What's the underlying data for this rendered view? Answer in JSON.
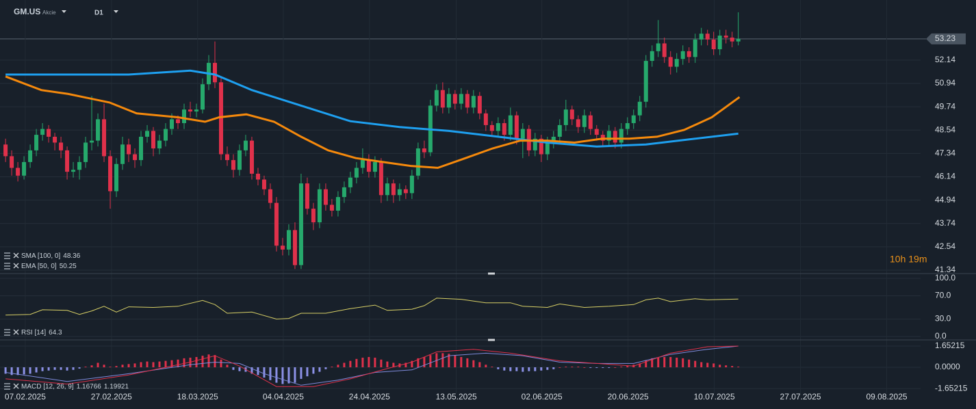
{
  "header": {
    "symbol": "GM.US",
    "type": "Akcie",
    "timeframe": "D1"
  },
  "countdown": "10h 19m",
  "chart_data": [
    {
      "type": "candlestick",
      "up_color": "#26a96c",
      "down_color": "#e0314b",
      "xlim": [
        -0.9,
        148.6
      ],
      "ylim": [
        41.34,
        54.88
      ],
      "yticks": [
        52.14,
        50.94,
        49.74,
        48.54,
        47.34,
        46.14,
        44.94,
        43.74,
        42.54,
        41.34
      ],
      "grid": true,
      "last_price": 53.23,
      "ohlc": [
        [
          47.8,
          48.1,
          46.9,
          47.2
        ],
        [
          47.2,
          47.5,
          46.2,
          46.6
        ],
        [
          46.6,
          46.9,
          45.9,
          46.2
        ],
        [
          46.2,
          47.2,
          46.0,
          46.9
        ],
        [
          46.9,
          47.8,
          46.6,
          47.5
        ],
        [
          47.5,
          48.6,
          47.2,
          48.3
        ],
        [
          48.3,
          48.9,
          48.0,
          48.6
        ],
        [
          48.6,
          48.8,
          47.9,
          48.2
        ],
        [
          48.2,
          48.4,
          47.5,
          47.9
        ],
        [
          47.9,
          48.2,
          47.1,
          47.5
        ],
        [
          47.5,
          47.7,
          46.0,
          46.4
        ],
        [
          46.4,
          46.9,
          46.1,
          46.5
        ],
        [
          46.5,
          47.2,
          46.0,
          46.9
        ],
        [
          46.9,
          48.2,
          46.6,
          47.9
        ],
        [
          47.9,
          50.3,
          47.5,
          48.0
        ],
        [
          48.0,
          49.4,
          47.7,
          49.1
        ],
        [
          49.1,
          49.9,
          46.9,
          47.2
        ],
        [
          47.2,
          47.5,
          44.5,
          45.4
        ],
        [
          45.4,
          47.1,
          45.1,
          46.8
        ],
        [
          46.8,
          48.2,
          46.5,
          47.8
        ],
        [
          47.8,
          48.1,
          46.9,
          47.3
        ],
        [
          47.3,
          47.6,
          46.6,
          47.0
        ],
        [
          47.0,
          48.5,
          46.7,
          48.2
        ],
        [
          48.2,
          48.8,
          47.9,
          48.5
        ],
        [
          48.5,
          48.7,
          47.2,
          47.6
        ],
        [
          47.6,
          48.3,
          47.3,
          48.0
        ],
        [
          48.0,
          48.9,
          47.7,
          48.6
        ],
        [
          48.6,
          49.4,
          48.3,
          49.1
        ],
        [
          49.1,
          49.3,
          48.6,
          48.9
        ],
        [
          48.9,
          49.9,
          48.6,
          49.6
        ],
        [
          49.6,
          50.0,
          49.2,
          49.5
        ],
        [
          49.5,
          49.9,
          49.2,
          49.6
        ],
        [
          49.6,
          51.2,
          49.4,
          50.9
        ],
        [
          50.9,
          52.4,
          50.6,
          52.0
        ],
        [
          52.0,
          53.1,
          50.7,
          51.0
        ],
        [
          51.0,
          51.3,
          47.0,
          47.3
        ],
        [
          47.3,
          47.7,
          46.7,
          47.0
        ],
        [
          47.0,
          47.3,
          46.1,
          46.5
        ],
        [
          46.5,
          47.8,
          46.2,
          47.5
        ],
        [
          47.5,
          48.3,
          47.2,
          48.0
        ],
        [
          48.0,
          48.2,
          46.0,
          46.3
        ],
        [
          46.3,
          46.6,
          45.7,
          46.0
        ],
        [
          46.0,
          46.2,
          45.2,
          45.5
        ],
        [
          45.5,
          45.8,
          44.5,
          44.8
        ],
        [
          44.8,
          45.1,
          42.3,
          42.6
        ],
        [
          42.6,
          43.0,
          42.1,
          42.4
        ],
        [
          42.4,
          43.7,
          42.1,
          43.4
        ],
        [
          43.4,
          43.8,
          41.4,
          41.6
        ],
        [
          41.6,
          46.3,
          41.4,
          45.8
        ],
        [
          45.8,
          46.1,
          44.2,
          44.5
        ],
        [
          44.5,
          44.8,
          43.4,
          43.8
        ],
        [
          43.8,
          45.8,
          43.5,
          45.5
        ],
        [
          45.5,
          45.8,
          44.4,
          44.7
        ],
        [
          44.7,
          45.0,
          44.1,
          44.4
        ],
        [
          44.4,
          45.4,
          44.1,
          45.1
        ],
        [
          45.1,
          45.9,
          44.8,
          45.6
        ],
        [
          45.6,
          46.4,
          45.3,
          46.1
        ],
        [
          46.1,
          46.9,
          45.8,
          46.6
        ],
        [
          46.6,
          47.6,
          46.3,
          47.0
        ],
        [
          47.0,
          47.3,
          46.1,
          46.4
        ],
        [
          46.4,
          47.2,
          46.1,
          46.9
        ],
        [
          46.9,
          47.1,
          44.8,
          45.2
        ],
        [
          45.2,
          46.1,
          44.9,
          45.8
        ],
        [
          45.8,
          46.0,
          44.8,
          45.2
        ],
        [
          45.2,
          45.8,
          44.9,
          45.5
        ],
        [
          45.5,
          45.7,
          45.0,
          45.3
        ],
        [
          45.3,
          46.5,
          45.0,
          46.2
        ],
        [
          46.2,
          47.9,
          46.0,
          47.6
        ],
        [
          47.6,
          48.0,
          47.1,
          47.4
        ],
        [
          47.4,
          50.1,
          47.2,
          49.8
        ],
        [
          49.8,
          50.9,
          49.5,
          50.6
        ],
        [
          50.6,
          51.0,
          49.4,
          49.7
        ],
        [
          49.7,
          50.7,
          49.4,
          50.4
        ],
        [
          50.4,
          50.6,
          49.6,
          49.9
        ],
        [
          49.9,
          50.7,
          49.6,
          50.4
        ],
        [
          50.4,
          50.6,
          49.4,
          49.7
        ],
        [
          49.7,
          50.6,
          49.4,
          50.3
        ],
        [
          50.3,
          50.5,
          49.1,
          49.4
        ],
        [
          49.4,
          49.6,
          48.5,
          48.8
        ],
        [
          48.8,
          49.0,
          48.2,
          48.5
        ],
        [
          48.5,
          49.2,
          48.2,
          48.9
        ],
        [
          48.9,
          49.1,
          48.0,
          48.3
        ],
        [
          48.3,
          49.7,
          48.0,
          49.3
        ],
        [
          49.3,
          49.5,
          47.8,
          48.1
        ],
        [
          48.1,
          48.9,
          47.1,
          48.6
        ],
        [
          48.6,
          48.8,
          47.2,
          47.5
        ],
        [
          47.5,
          48.4,
          47.2,
          48.1
        ],
        [
          48.1,
          48.3,
          46.9,
          47.3
        ],
        [
          47.3,
          48.2,
          47.0,
          47.9
        ],
        [
          47.9,
          48.5,
          47.6,
          48.2
        ],
        [
          48.2,
          49.1,
          47.9,
          48.8
        ],
        [
          48.8,
          50.1,
          48.5,
          49.6
        ],
        [
          49.6,
          49.8,
          48.8,
          49.1
        ],
        [
          49.1,
          49.3,
          48.4,
          48.7
        ],
        [
          48.7,
          49.6,
          48.4,
          49.3
        ],
        [
          49.3,
          49.5,
          48.3,
          48.6
        ],
        [
          48.6,
          48.8,
          48.0,
          48.3
        ],
        [
          48.3,
          48.5,
          47.7,
          48.0
        ],
        [
          48.0,
          48.8,
          47.7,
          48.5
        ],
        [
          48.5,
          48.7,
          47.6,
          47.9
        ],
        [
          47.9,
          48.9,
          47.6,
          48.6
        ],
        [
          48.6,
          49.2,
          48.3,
          48.9
        ],
        [
          48.9,
          49.6,
          48.6,
          49.3
        ],
        [
          49.3,
          50.3,
          49.0,
          50.0
        ],
        [
          50.0,
          52.4,
          49.7,
          52.1
        ],
        [
          52.1,
          52.9,
          51.8,
          52.6
        ],
        [
          52.6,
          54.2,
          52.3,
          53.0
        ],
        [
          53.0,
          53.3,
          52.0,
          52.3
        ],
        [
          52.3,
          52.6,
          51.4,
          51.8
        ],
        [
          51.8,
          52.5,
          51.5,
          52.2
        ],
        [
          52.2,
          52.9,
          51.9,
          52.6
        ],
        [
          52.6,
          52.8,
          52.0,
          52.3
        ],
        [
          52.3,
          53.5,
          52.0,
          53.2
        ],
        [
          53.2,
          53.8,
          52.9,
          53.5
        ],
        [
          53.5,
          53.7,
          52.9,
          53.2
        ],
        [
          53.2,
          53.6,
          52.4,
          52.7
        ],
        [
          52.7,
          53.7,
          52.4,
          53.4
        ],
        [
          53.4,
          53.7,
          53.0,
          53.3
        ],
        [
          53.3,
          53.6,
          52.8,
          53.1
        ],
        [
          53.1,
          54.6,
          52.9,
          53.23
        ]
      ],
      "series": [
        {
          "name": "SMA [100, 0]",
          "value": 48.36,
          "color": "#1ea0f0",
          "x": [
            0,
            10,
            20,
            30,
            34,
            40,
            48,
            56,
            64,
            72,
            80,
            88,
            96,
            104,
            112,
            119
          ],
          "values": [
            51.4,
            51.4,
            51.4,
            51.6,
            51.4,
            50.6,
            49.8,
            49.0,
            48.7,
            48.5,
            48.2,
            47.9,
            47.7,
            47.8,
            48.1,
            48.36
          ]
        },
        {
          "name": "EMA [50, 0]",
          "value": 50.25,
          "color": "#f5890c",
          "x": [
            0,
            5.8,
            10.2,
            16.9,
            21.3,
            28,
            32.4,
            34.7,
            39.1,
            43.6,
            48,
            52.4,
            56.9,
            61.3,
            65.8,
            70.2,
            74.7,
            79.1,
            83.6,
            88,
            92.4,
            96.9,
            101.3,
            105.8,
            110.2,
            114.7,
            119.2
          ],
          "values": [
            51.3,
            50.6,
            50.4,
            49.96,
            49.4,
            49.2,
            48.97,
            49.2,
            49.35,
            48.97,
            48.2,
            47.5,
            47.1,
            46.9,
            46.7,
            46.6,
            47.1,
            47.6,
            48.0,
            48.0,
            47.9,
            48.1,
            48.1,
            48.2,
            48.55,
            49.2,
            50.24
          ]
        }
      ]
    },
    {
      "type": "line",
      "xlim": [
        -0.9,
        148.6
      ],
      "ylim": [
        0,
        100
      ],
      "yticks": [
        {
          "value": 100,
          "label": "100.0"
        },
        {
          "value": 70,
          "label": "70.0"
        },
        {
          "value": 30,
          "label": "30.0"
        },
        {
          "value": 0,
          "label": "0.0"
        }
      ],
      "series": [
        {
          "name": "RSI [14]",
          "value": 64.3,
          "color": "#d9d166",
          "x": [
            0,
            4,
            6,
            10,
            12,
            14,
            16,
            18,
            20,
            24,
            28,
            32,
            34,
            36,
            40,
            44,
            46,
            48,
            52,
            56,
            60,
            62,
            66,
            68,
            70,
            74,
            78,
            82,
            84,
            88,
            90,
            94,
            98,
            102,
            104,
            106,
            108,
            112,
            114,
            119
          ],
          "values": [
            37,
            38,
            46,
            45,
            38,
            44,
            52,
            42,
            51,
            50,
            52,
            62,
            55,
            40,
            42,
            30,
            31,
            40,
            40,
            48,
            54,
            45,
            47,
            53,
            66,
            64,
            58,
            58,
            52,
            50,
            56,
            50,
            52,
            55,
            63,
            66,
            60,
            65,
            63,
            64.3
          ]
        }
      ]
    },
    {
      "type": "macd",
      "name": "MACD [12, 26, 9]",
      "legend_values": [
        1.16766,
        1.19921
      ],
      "xlim": [
        -0.9,
        148.6
      ],
      "ylim": [
        -2.02,
        1.97
      ],
      "yticks": [
        1.65215,
        {
          "value": 0,
          "label": "0.0000"
        },
        -1.65215
      ],
      "xticks": [
        {
          "value": 3.2,
          "label": "07.02.2025"
        },
        {
          "value": 17.2,
          "label": "27.02.2025"
        },
        {
          "value": 31.2,
          "label": "18.03.2025"
        },
        {
          "value": 45.1,
          "label": "04.04.2025"
        },
        {
          "value": 59.1,
          "label": "24.04.2025"
        },
        {
          "value": 73.2,
          "label": "13.05.2025"
        },
        {
          "value": 87.1,
          "label": "02.06.2025"
        },
        {
          "value": 101.1,
          "label": "20.06.2025"
        },
        {
          "value": 115.1,
          "label": "10.07.2025"
        },
        {
          "value": 129.1,
          "label": "27.07.2025"
        },
        {
          "value": 143.1,
          "label": "09.08.2025"
        }
      ],
      "histogram": {
        "up_color": "#e0314b",
        "down_color": "#8b90e6",
        "values": [
          -0.5,
          -0.6,
          -0.6,
          -0.55,
          -0.5,
          -0.4,
          -0.3,
          -0.25,
          -0.2,
          -0.2,
          -0.25,
          -0.2,
          -0.1,
          0.05,
          0.15,
          0.35,
          0.2,
          0.05,
          0.1,
          0.2,
          0.25,
          0.3,
          0.4,
          0.45,
          0.4,
          0.45,
          0.5,
          0.55,
          0.6,
          0.7,
          0.75,
          0.8,
          0.9,
          1.0,
          0.95,
          0.6,
          0.2,
          -0.2,
          -0.3,
          -0.35,
          -0.5,
          -0.6,
          -0.8,
          -1.0,
          -1.2,
          -1.3,
          -1.25,
          -1.2,
          -0.9,
          -0.7,
          -0.5,
          -0.35,
          -0.15,
          0.05,
          0.2,
          0.35,
          0.5,
          0.65,
          0.75,
          0.8,
          0.75,
          0.6,
          0.45,
          0.35,
          0.3,
          0.35,
          0.5,
          0.7,
          0.8,
          0.95,
          1.1,
          1.1,
          1.05,
          0.95,
          0.8,
          0.7,
          0.55,
          0.4,
          0.2,
          0.05,
          -0.15,
          -0.25,
          -0.3,
          -0.3,
          -0.35,
          -0.3,
          -0.3,
          -0.25,
          -0.2,
          -0.15,
          0.0,
          0.05,
          0.05,
          0.05,
          0.0,
          -0.05,
          -0.05,
          -0.05,
          -0.05,
          0.0,
          0.05,
          0.1,
          0.2,
          0.3,
          0.55,
          0.7,
          0.75,
          0.8,
          0.8,
          0.75,
          0.7,
          0.6,
          0.5,
          0.4,
          0.35,
          0.3,
          0.2,
          0.15,
          0.1,
          0.05
        ]
      },
      "lines": [
        {
          "color": "#7f8bdc",
          "x": [
            0,
            10,
            20,
            30,
            34,
            38,
            42,
            48,
            54,
            60,
            66,
            72,
            78,
            84,
            90,
            96,
            102,
            108,
            114,
            119
          ],
          "values": [
            -0.4,
            -1.1,
            -0.5,
            0.2,
            0.4,
            0.3,
            -0.5,
            -1.4,
            -1.0,
            -0.4,
            -0.2,
            0.9,
            1.1,
            0.9,
            0.4,
            0.3,
            0.3,
            1.0,
            1.4,
            1.65
          ]
        },
        {
          "color": "#e0314b",
          "x": [
            0,
            10,
            20,
            30,
            34,
            38,
            44,
            50,
            56,
            62,
            66,
            70,
            76,
            82,
            90,
            96,
            102,
            108,
            114,
            119
          ],
          "values": [
            -0.9,
            -1.3,
            -0.6,
            0.4,
            0.9,
            0.1,
            -1.5,
            -1.5,
            -0.9,
            -0.1,
            0.4,
            1.2,
            1.4,
            1.1,
            0.5,
            0.3,
            0.1,
            1.1,
            1.6,
            1.65
          ]
        }
      ]
    }
  ]
}
